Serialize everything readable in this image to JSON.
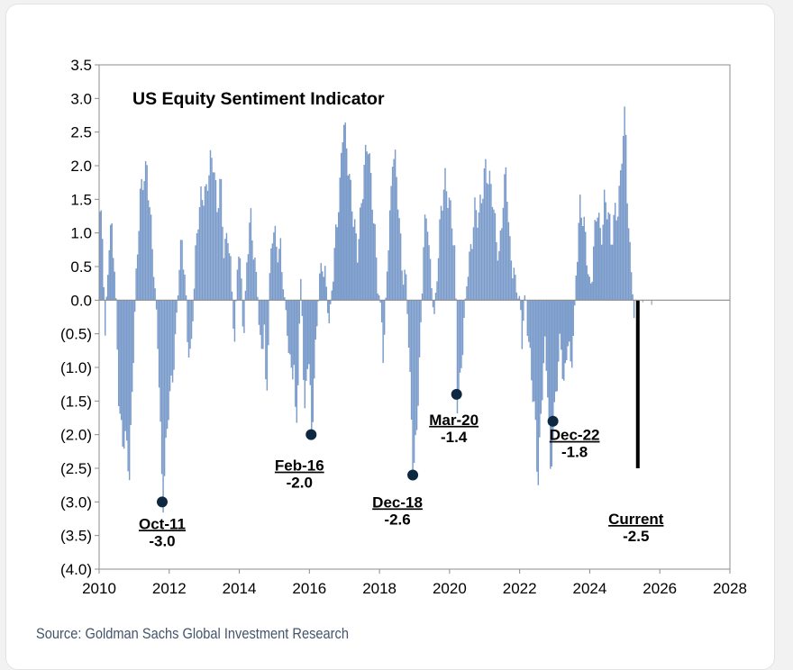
{
  "chart_data": {
    "type": "bar",
    "title": "US Equity Sentiment Indicator",
    "xlabel": "",
    "ylabel": "",
    "xlim": [
      2010,
      2028
    ],
    "ylim": [
      -4.0,
      3.5
    ],
    "x_ticks": [
      2010,
      2012,
      2014,
      2016,
      2018,
      2020,
      2022,
      2024,
      2026,
      2028
    ],
    "y_ticks": [
      3.5,
      3.0,
      2.5,
      2.0,
      1.5,
      1.0,
      0.5,
      0.0,
      -0.5,
      -1.0,
      -1.5,
      -2.0,
      -2.5,
      -3.0,
      -3.5,
      -4.0
    ],
    "y_tick_labels": [
      "3.5",
      "3.0",
      "2.5",
      "2.0",
      "1.5",
      "1.0",
      "0.5",
      "0.0",
      "(0.5)",
      "(1.0)",
      "(1.5)",
      "(2.0)",
      "(2.5)",
      "(3.0)",
      "(3.5)",
      "(4.0)"
    ],
    "series_color": "#7b9ccb",
    "highlight_color": "#000000",
    "marker_color": "#0e2841",
    "series": [
      {
        "name": "US Equity Sentiment Indicator",
        "anchors": [
          [
            2010.0,
            1.2
          ],
          [
            2010.1,
            0.8
          ],
          [
            2010.15,
            -0.6
          ],
          [
            2010.25,
            0.9
          ],
          [
            2010.35,
            1.0
          ],
          [
            2010.45,
            0.1
          ],
          [
            2010.55,
            -1.5
          ],
          [
            2010.65,
            -2.0
          ],
          [
            2010.75,
            -2.2
          ],
          [
            2010.85,
            -2.7
          ],
          [
            2010.95,
            -0.8
          ],
          [
            2011.05,
            0.5
          ],
          [
            2011.15,
            1.4
          ],
          [
            2011.25,
            1.8
          ],
          [
            2011.35,
            2.1
          ],
          [
            2011.45,
            1.2
          ],
          [
            2011.55,
            0.3
          ],
          [
            2011.65,
            -0.5
          ],
          [
            2011.7,
            -1.2
          ],
          [
            2011.75,
            -2.2
          ],
          [
            2011.8,
            -3.0
          ],
          [
            2011.85,
            -2.6
          ],
          [
            2011.95,
            -1.8
          ],
          [
            2012.05,
            -1.2
          ],
          [
            2012.15,
            -0.6
          ],
          [
            2012.25,
            0.3
          ],
          [
            2012.35,
            0.8
          ],
          [
            2012.45,
            0.2
          ],
          [
            2012.5,
            -0.4
          ],
          [
            2012.6,
            -0.9
          ],
          [
            2012.7,
            0.2
          ],
          [
            2012.8,
            1.2
          ],
          [
            2012.9,
            1.7
          ],
          [
            2013.05,
            1.5
          ],
          [
            2013.15,
            2.0
          ],
          [
            2013.25,
            2.2
          ],
          [
            2013.35,
            1.4
          ],
          [
            2013.45,
            1.7
          ],
          [
            2013.55,
            0.6
          ],
          [
            2013.65,
            1.2
          ],
          [
            2013.75,
            0.4
          ],
          [
            2013.85,
            -0.8
          ],
          [
            2013.95,
            0.9
          ],
          [
            2014.05,
            0.3
          ],
          [
            2014.1,
            -0.6
          ],
          [
            2014.2,
            0.5
          ],
          [
            2014.3,
            1.2
          ],
          [
            2014.4,
            0.8
          ],
          [
            2014.5,
            0.2
          ],
          [
            2014.6,
            -1.0
          ],
          [
            2014.7,
            -0.4
          ],
          [
            2014.75,
            -1.7
          ],
          [
            2014.85,
            0.4
          ],
          [
            2014.95,
            1.1
          ],
          [
            2015.05,
            0.6
          ],
          [
            2015.15,
            0.9
          ],
          [
            2015.25,
            0.2
          ],
          [
            2015.35,
            -0.5
          ],
          [
            2015.45,
            -1.2
          ],
          [
            2015.55,
            -0.8
          ],
          [
            2015.6,
            -2.1
          ],
          [
            2015.65,
            -1.2
          ],
          [
            2015.75,
            0.4
          ],
          [
            2015.8,
            -0.9
          ],
          [
            2015.85,
            -1.8
          ],
          [
            2015.95,
            -0.5
          ],
          [
            2016.05,
            -2.0
          ],
          [
            2016.15,
            -1.0
          ],
          [
            2016.25,
            0.2
          ],
          [
            2016.35,
            0.7
          ],
          [
            2016.45,
            0.3
          ],
          [
            2016.55,
            -0.5
          ],
          [
            2016.65,
            0.4
          ],
          [
            2016.75,
            1.2
          ],
          [
            2016.85,
            1.6
          ],
          [
            2016.95,
            2.6
          ],
          [
            2017.05,
            2.3
          ],
          [
            2017.15,
            1.8
          ],
          [
            2017.25,
            1.1
          ],
          [
            2017.35,
            0.6
          ],
          [
            2017.45,
            1.4
          ],
          [
            2017.55,
            2.1
          ],
          [
            2017.65,
            2.3
          ],
          [
            2017.75,
            1.6
          ],
          [
            2017.85,
            1.1
          ],
          [
            2017.95,
            0.2
          ],
          [
            2018.05,
            -0.4
          ],
          [
            2018.1,
            -1.1
          ],
          [
            2018.2,
            0.6
          ],
          [
            2018.3,
            1.5
          ],
          [
            2018.35,
            2.2
          ],
          [
            2018.45,
            1.9
          ],
          [
            2018.55,
            1.1
          ],
          [
            2018.65,
            0.5
          ],
          [
            2018.75,
            0.3
          ],
          [
            2018.85,
            -1.3
          ],
          [
            2018.95,
            -2.6
          ],
          [
            2019.05,
            -1.7
          ],
          [
            2019.15,
            -0.7
          ],
          [
            2019.25,
            0.9
          ],
          [
            2019.35,
            1.3
          ],
          [
            2019.45,
            0.4
          ],
          [
            2019.55,
            -0.3
          ],
          [
            2019.65,
            0.5
          ],
          [
            2019.75,
            1.5
          ],
          [
            2019.85,
            1.9
          ],
          [
            2019.95,
            1.4
          ],
          [
            2020.05,
            1.1
          ],
          [
            2020.15,
            0.6
          ],
          [
            2020.2,
            -1.4
          ],
          [
            2020.3,
            -1.2
          ],
          [
            2020.4,
            -0.4
          ],
          [
            2020.5,
            0.5
          ],
          [
            2020.6,
            0.9
          ],
          [
            2020.7,
            1.3
          ],
          [
            2020.8,
            1.1
          ],
          [
            2020.9,
            1.6
          ],
          [
            2021.0,
            2.1
          ],
          [
            2021.1,
            1.7
          ],
          [
            2021.2,
            1.5
          ],
          [
            2021.3,
            1.1
          ],
          [
            2021.4,
            0.7
          ],
          [
            2021.5,
            1.3
          ],
          [
            2021.6,
            1.9
          ],
          [
            2021.7,
            0.9
          ],
          [
            2021.8,
            0.5
          ],
          [
            2021.9,
            0.1
          ],
          [
            2022.0,
            -0.1
          ],
          [
            2022.05,
            -0.5
          ],
          [
            2022.15,
            0.2
          ],
          [
            2022.25,
            -0.8
          ],
          [
            2022.35,
            -1.4
          ],
          [
            2022.45,
            -1.9
          ],
          [
            2022.5,
            -2.7
          ],
          [
            2022.6,
            -1.6
          ],
          [
            2022.7,
            -0.8
          ],
          [
            2022.8,
            -1.4
          ],
          [
            2022.85,
            -2.6
          ],
          [
            2022.95,
            -1.8
          ],
          [
            2023.05,
            -1.3
          ],
          [
            2023.15,
            -0.6
          ],
          [
            2023.25,
            -1.2
          ],
          [
            2023.35,
            -0.5
          ],
          [
            2023.45,
            -1.2
          ],
          [
            2023.55,
            -0.2
          ],
          [
            2023.6,
            0.6
          ],
          [
            2023.7,
            1.5
          ],
          [
            2023.8,
            1.1
          ],
          [
            2023.9,
            0.6
          ],
          [
            2024.0,
            0.2
          ],
          [
            2024.1,
            0.9
          ],
          [
            2024.2,
            1.3
          ],
          [
            2024.3,
            0.8
          ],
          [
            2024.4,
            1.6
          ],
          [
            2024.5,
            1.4
          ],
          [
            2024.6,
            0.7
          ],
          [
            2024.7,
            1.3
          ],
          [
            2024.8,
            1.5
          ],
          [
            2024.9,
            2.2
          ],
          [
            2025.0,
            2.7
          ],
          [
            2025.05,
            1.6
          ],
          [
            2025.1,
            0.9
          ],
          [
            2025.18,
            0.6
          ],
          [
            2025.25,
            -0.4
          ]
        ],
        "trailing": [
          [
            2025.5,
            -0.03
          ],
          [
            2025.75,
            -0.07
          ]
        ]
      }
    ],
    "highlight_bar": {
      "x": 2025.32,
      "value": -2.5
    },
    "annotations": [
      {
        "x": 2011.8,
        "value": -3.0,
        "label": "Oct-11",
        "value_label": "-3.0",
        "marker": true
      },
      {
        "x": 2016.05,
        "value": -2.0,
        "label": "Feb-16",
        "value_label": "-2.0",
        "marker": true
      },
      {
        "x": 2018.95,
        "value": -2.6,
        "label": "Dec-18",
        "value_label": "-2.6",
        "marker": true
      },
      {
        "x": 2020.2,
        "value": -1.4,
        "label": "Mar-20",
        "value_label": "-1.4",
        "marker": true
      },
      {
        "x": 2022.95,
        "value": -1.8,
        "label": "Dec-22",
        "value_label": "-1.8",
        "marker": true
      },
      {
        "x": 2025.32,
        "value": -2.5,
        "label": "Current",
        "value_label": "-2.5",
        "marker": false
      }
    ]
  },
  "source": "Source: Goldman Sachs Global Investment Research"
}
